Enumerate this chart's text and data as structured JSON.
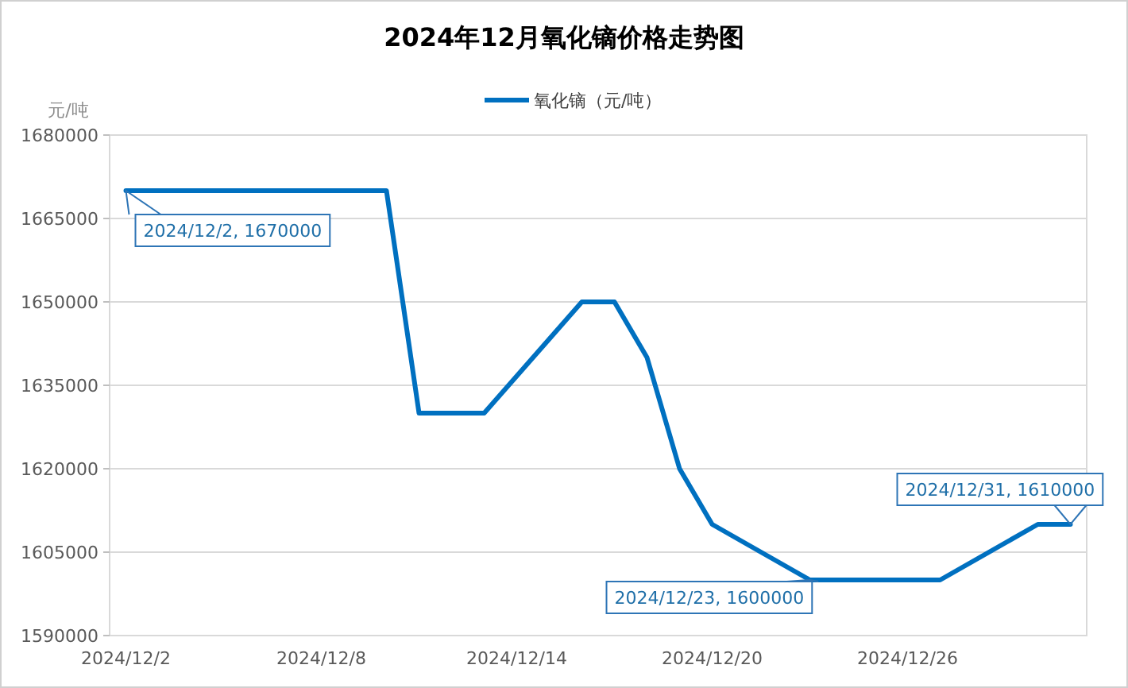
{
  "chart_data": {
    "type": "line",
    "title": "2024年12月氧化镝价格走势图",
    "ylabel": "元/吨",
    "x": [
      "2024-12-02",
      "2024-12-03",
      "2024-12-04",
      "2024-12-05",
      "2024-12-06",
      "2024-12-09",
      "2024-12-10",
      "2024-12-11",
      "2024-12-12",
      "2024-12-13",
      "2024-12-16",
      "2024-12-17",
      "2024-12-18",
      "2024-12-19",
      "2024-12-20",
      "2024-12-23",
      "2024-12-24",
      "2024-12-25",
      "2024-12-26",
      "2024-12-27",
      "2024-12-30",
      "2024-12-31"
    ],
    "series": [
      {
        "name": "氧化镝（元/吨）",
        "color": "#0070c0",
        "values": [
          1670000,
          1670000,
          1670000,
          1670000,
          1670000,
          1670000,
          1670000,
          1630000,
          1630000,
          1630000,
          1650000,
          1650000,
          1640000,
          1620000,
          1610000,
          1600000,
          1600000,
          1600000,
          1600000,
          1600000,
          1610000,
          1610000
        ]
      }
    ],
    "xlim": [
      "2024-12-01T12:00",
      "2024-12-31T12:00"
    ],
    "xticks": [
      {
        "value": "2024-12-02",
        "label": "2024/12/2"
      },
      {
        "value": "2024-12-08",
        "label": "2024/12/8"
      },
      {
        "value": "2024-12-14",
        "label": "2024/12/14"
      },
      {
        "value": "2024-12-20",
        "label": "2024/12/20"
      },
      {
        "value": "2024-12-26",
        "label": "2024/12/26"
      }
    ],
    "ylim": [
      1590000,
      1680000
    ],
    "yticks": [
      1590000,
      1605000,
      1620000,
      1635000,
      1650000,
      1665000,
      1680000
    ],
    "grid": "y",
    "legend": "top",
    "marker": "none",
    "line_style": "solid",
    "annotations": [
      {
        "text": "2024/12/2, 1670000",
        "x": "2024-12-02",
        "y": 1670000
      },
      {
        "text": "2024/12/23, 1600000",
        "x": "2024-12-23",
        "y": 1600000
      },
      {
        "text": "2024/12/31, 1610000",
        "x": "2024-12-31",
        "y": 1610000
      }
    ]
  }
}
